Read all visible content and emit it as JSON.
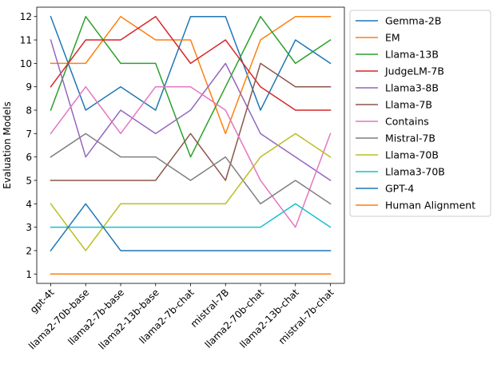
{
  "chart_data": {
    "type": "line",
    "title": "",
    "xlabel": "",
    "ylabel": "Evaluation Models",
    "categories": [
      "gpt-4t",
      "llama2-70b-base",
      "llama2-7b-base",
      "llama2-13b-base",
      "llama2-7b-chat",
      "mistral-7B",
      "llama2-70b-chat",
      "llama2-13b-chat",
      "mistral-7b-chat"
    ],
    "yticks": [
      1,
      2,
      3,
      4,
      5,
      6,
      7,
      8,
      9,
      10,
      11,
      12
    ],
    "ylim": [
      0.6,
      12.4
    ],
    "grid": false,
    "legend_position": "outside-right",
    "series": [
      {
        "name": "Gemma-2B",
        "color": "#1f77b4",
        "values": [
          12,
          8,
          9,
          8,
          12,
          12,
          8,
          11,
          10
        ]
      },
      {
        "name": "EM",
        "color": "#ff7f0e",
        "values": [
          10,
          10,
          12,
          11,
          11,
          7,
          11,
          12,
          12
        ]
      },
      {
        "name": "Llama-13B",
        "color": "#2ca02c",
        "values": [
          8,
          12,
          10,
          10,
          6,
          9,
          12,
          10,
          11
        ]
      },
      {
        "name": "JudgeLM-7B",
        "color": "#d62728",
        "values": [
          9,
          11,
          11,
          12,
          10,
          11,
          9,
          8,
          8
        ]
      },
      {
        "name": "Llama3-8B",
        "color": "#9467bd",
        "values": [
          11,
          6,
          8,
          7,
          8,
          10,
          7,
          6,
          5
        ]
      },
      {
        "name": "Llama-7B",
        "color": "#8c564b",
        "values": [
          5,
          5,
          5,
          5,
          7,
          5,
          10,
          9,
          9
        ]
      },
      {
        "name": "Contains",
        "color": "#e377c2",
        "values": [
          7,
          9,
          7,
          9,
          9,
          8,
          5,
          3,
          7
        ]
      },
      {
        "name": "Mistral-7B",
        "color": "#7f7f7f",
        "values": [
          6,
          7,
          6,
          6,
          5,
          6,
          4,
          5,
          4
        ]
      },
      {
        "name": "Llama-70B",
        "color": "#bcbd22",
        "values": [
          4,
          2,
          4,
          4,
          4,
          4,
          6,
          7,
          6
        ]
      },
      {
        "name": "Llama3-70B",
        "color": "#17becf",
        "values": [
          3,
          3,
          3,
          3,
          3,
          3,
          3,
          4,
          3
        ]
      },
      {
        "name": "GPT-4",
        "color": "#1f77b4",
        "values": [
          2,
          4,
          2,
          2,
          2,
          2,
          2,
          2,
          2
        ]
      },
      {
        "name": "Human Alignment",
        "color": "#ff7f0e",
        "values": [
          1,
          1,
          1,
          1,
          1,
          1,
          1,
          1,
          1
        ]
      }
    ]
  }
}
